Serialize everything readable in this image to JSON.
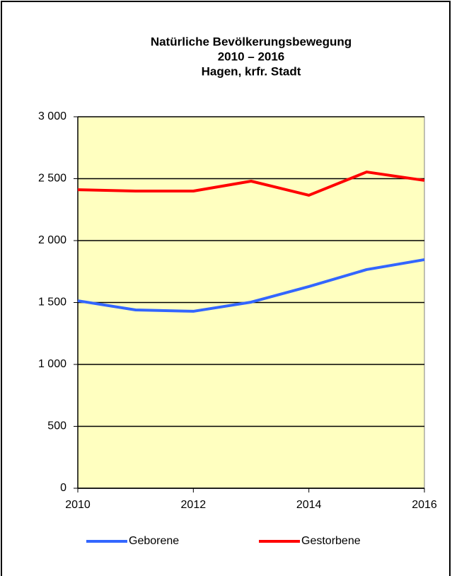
{
  "chart_data": {
    "type": "line",
    "title": [
      "Natürliche Bevölkerungsbewegung",
      "2010 – 2016",
      "Hagen, krfr. Stadt"
    ],
    "x": [
      2010,
      2011,
      2012,
      2013,
      2014,
      2015,
      2016
    ],
    "series": [
      {
        "name": "Geborene",
        "color": "#3366ff",
        "values": [
          1514,
          1440,
          1429,
          1503,
          1629,
          1766,
          1846
        ]
      },
      {
        "name": "Gestorbene",
        "color": "#ff0000",
        "values": [
          2411,
          2400,
          2400,
          2480,
          2366,
          2554,
          2486
        ]
      }
    ],
    "xlim": [
      2010,
      2016
    ],
    "xticks": [
      2010,
      2012,
      2014,
      2016
    ],
    "ylim": [
      0,
      3000
    ],
    "yticks": [
      0,
      500,
      {
        "value": 1000,
        "label": "1 000"
      },
      {
        "value": 1500,
        "label": "1 500"
      },
      {
        "value": 2000,
        "label": "2 000"
      },
      {
        "value": 2500,
        "label": "2 500"
      },
      {
        "value": 3000,
        "label": "3 000"
      }
    ],
    "grid": true,
    "plot_background": "#ffffc0",
    "legend": "bottom"
  }
}
